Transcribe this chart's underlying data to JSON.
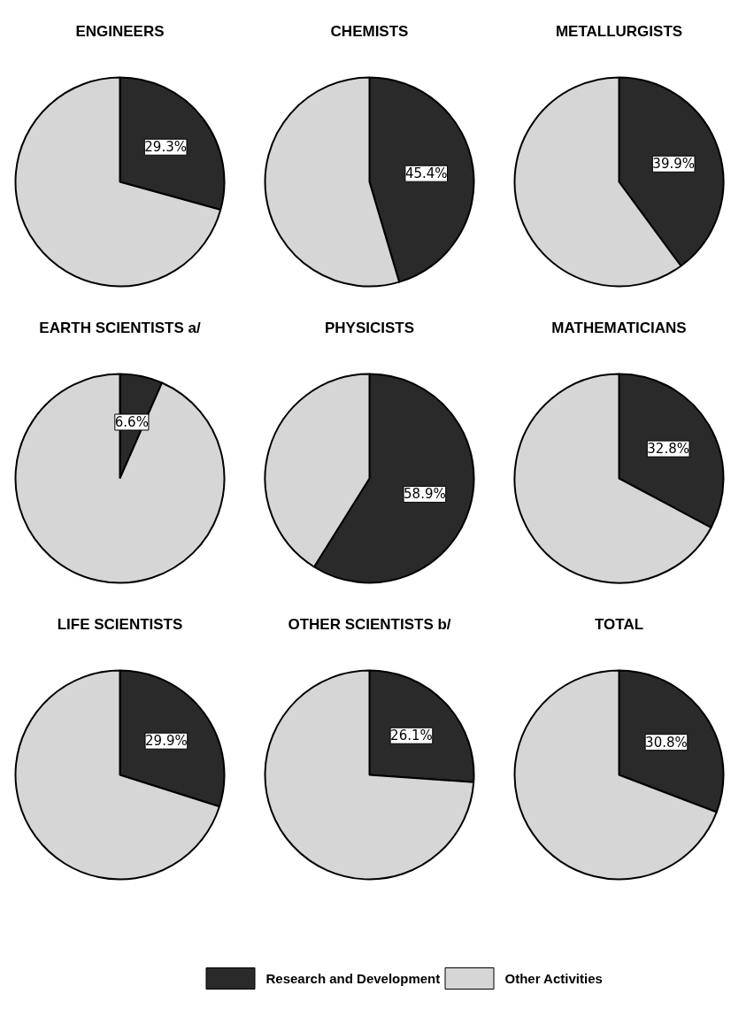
{
  "chart_data": [
    {
      "type": "pie",
      "title": "ENGINEERS",
      "categories": [
        "Research and Development",
        "Other Activities"
      ],
      "values": [
        29.3,
        70.7
      ],
      "colors": [
        "#2a2a2a",
        "#d6d6d6"
      ],
      "value_labels": [
        "29.3%",
        null
      ],
      "legend": "bottom"
    },
    {
      "type": "pie",
      "title": "CHEMISTS",
      "categories": [
        null,
        null
      ],
      "values": [
        45.4,
        54.6
      ],
      "colors": [
        "#2a2a2a",
        "#d6d6d6"
      ],
      "value_labels": [
        "45.4%",
        null
      ]
    },
    {
      "type": "pie",
      "title": "METALLURGISTS",
      "categories": [
        null,
        null
      ],
      "values": [
        39.9,
        60.1
      ],
      "colors": [
        "#2a2a2a",
        "#d6d6d6"
      ],
      "value_labels": [
        "39.9%",
        null
      ]
    },
    {
      "type": "pie",
      "title": "EARTH SCIENTISTS a/",
      "categories": [
        null,
        null
      ],
      "values": [
        6.6,
        93.4
      ],
      "colors": [
        "#2a2a2a",
        "#d6d6d6"
      ],
      "value_labels": [
        "6.6%",
        null
      ]
    },
    {
      "type": "pie",
      "title": "PHYSICISTS",
      "categories": [
        null,
        null
      ],
      "values": [
        58.9,
        41.1
      ],
      "colors": [
        "#2a2a2a",
        "#d6d6d6"
      ],
      "value_labels": [
        "58.9%",
        null
      ]
    },
    {
      "type": "pie",
      "title": "MATHEMATICIANS",
      "categories": [
        null,
        null
      ],
      "values": [
        32.8,
        67.2
      ],
      "colors": [
        "#2a2a2a",
        "#d6d6d6"
      ],
      "value_labels": [
        "32.8%",
        null
      ]
    },
    {
      "type": "pie",
      "title": "LIFE SCIENTISTS",
      "categories": [
        null,
        null
      ],
      "values": [
        29.9,
        70.1
      ],
      "colors": [
        "#2a2a2a",
        "#d6d6d6"
      ],
      "value_labels": [
        "29.9%",
        null
      ]
    },
    {
      "type": "pie",
      "title": "OTHER SCIENTISTS b/",
      "categories": [
        null,
        null
      ],
      "values": [
        26.1,
        73.9
      ],
      "colors": [
        "#2a2a2a",
        "#d6d6d6"
      ],
      "value_labels": [
        "26.1%",
        null
      ]
    },
    {
      "type": "pie",
      "title": "TOTAL",
      "categories": [
        null,
        null
      ],
      "values": [
        30.8,
        69.2
      ],
      "colors": [
        "#2a2a2a",
        "#d6d6d6"
      ],
      "value_labels": [
        "30.8%",
        null
      ]
    }
  ]
}
